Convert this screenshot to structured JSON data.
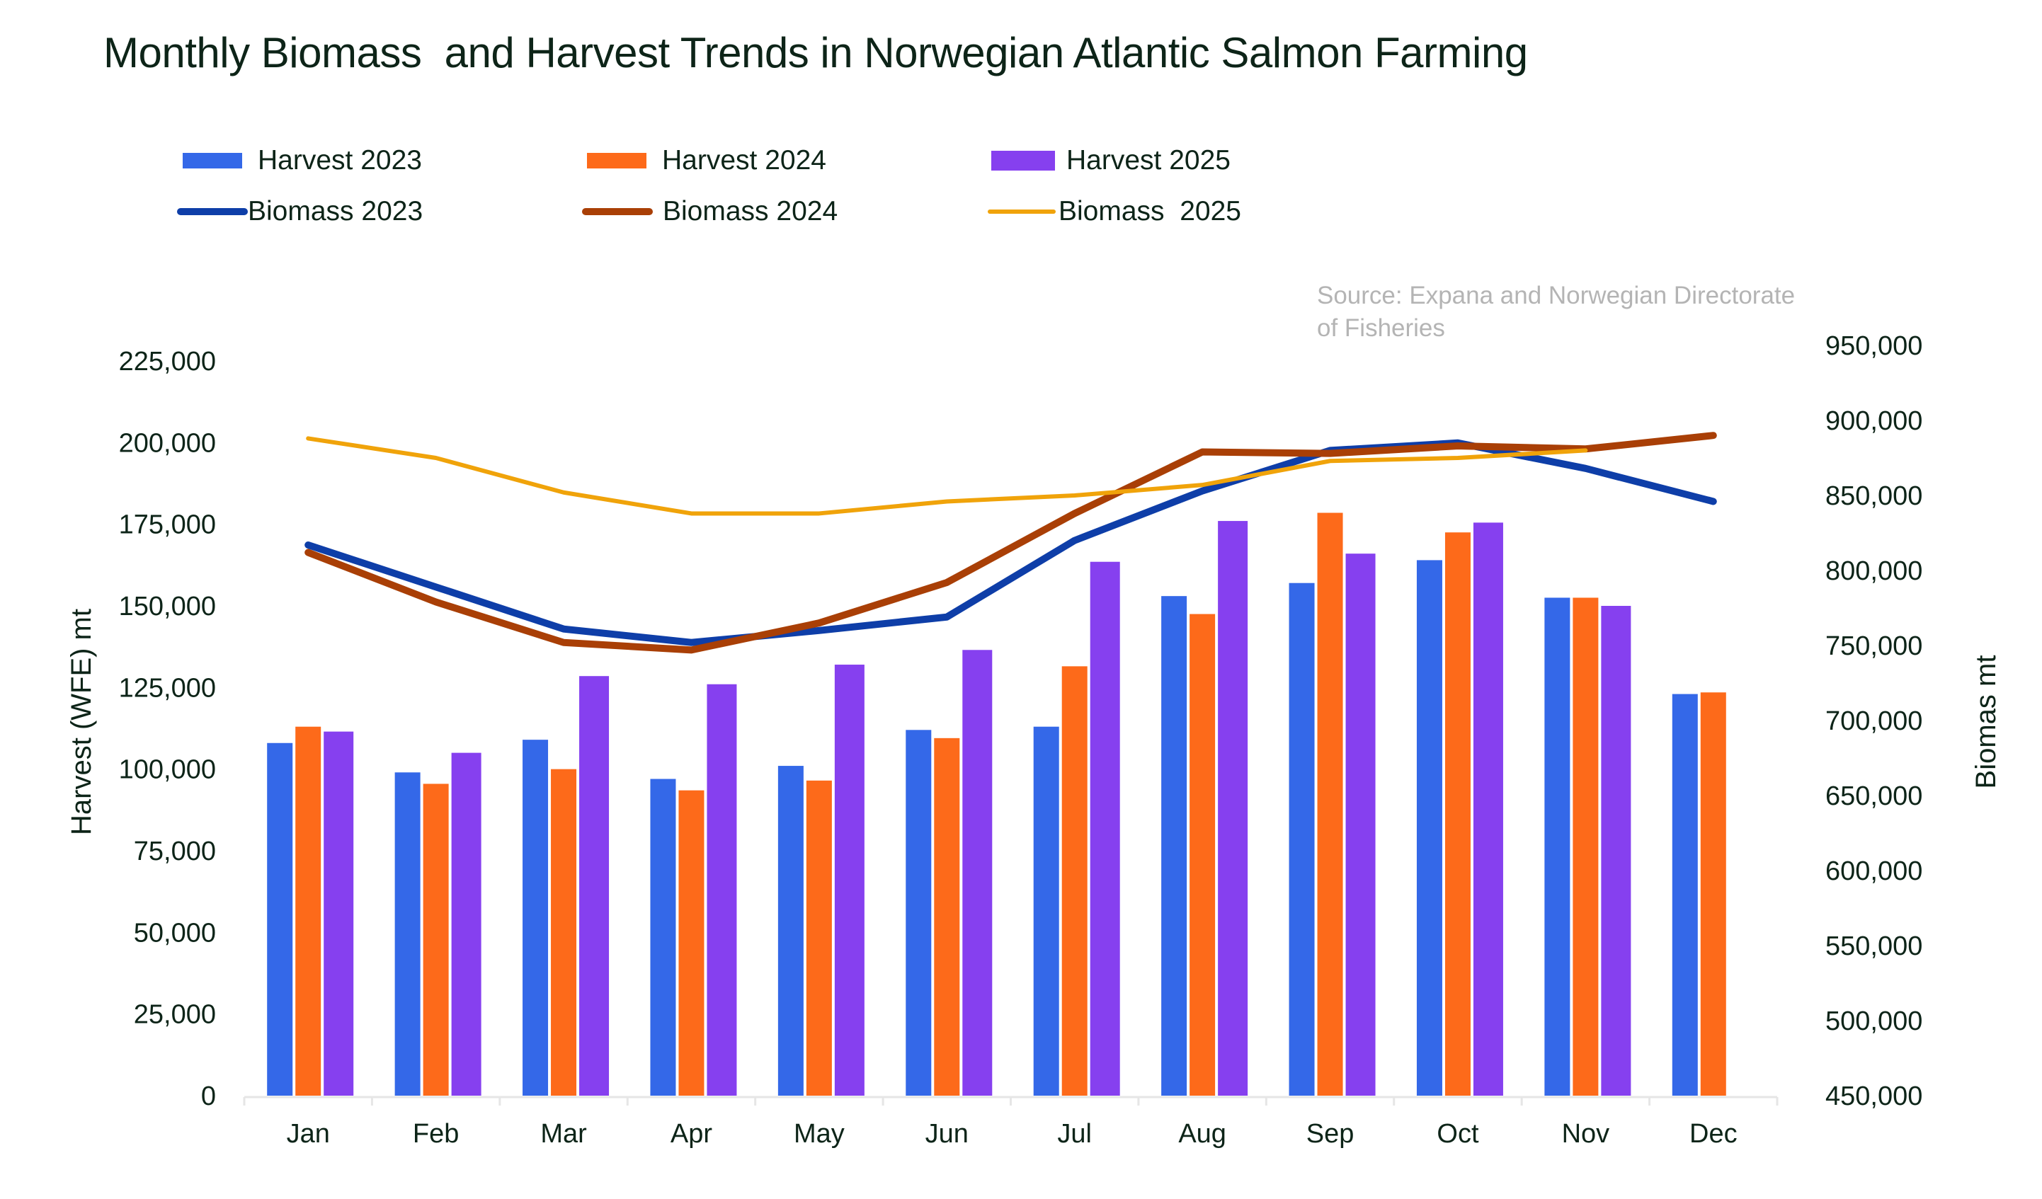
{
  "chart_data": {
    "type": "bar+line",
    "title": "Monthly Biomass  and Harvest Trends in Norwegian Atlantic Salmon Farming",
    "source": "Source: Expana and Norwegian Directorate of Fisheries",
    "source_lines": [
      "Source: Expana and Norwegian Directorate",
      "of Fisheries"
    ],
    "categories": [
      "Jan",
      "Feb",
      "Mar",
      "Apr",
      "May",
      "Jun",
      "Jul",
      "Aug",
      "Sep",
      "Oct",
      "Nov",
      "Dec"
    ],
    "ylabel_left": "Harvest (WFE) mt",
    "ylabel_right": "Biomas mt",
    "ylim_left": [
      0,
      225000
    ],
    "ylim_right": [
      450000,
      950000
    ],
    "yticks_left": [
      "0",
      "25,000",
      "50,000",
      "75,000",
      "100,000",
      "125,000",
      "150,000",
      "175,000",
      "200,000",
      "225,000"
    ],
    "yticks_right": [
      "450,000",
      "500,000",
      "550,000",
      "600,000",
      "650,000",
      "700,000",
      "750,000",
      "800,000",
      "850,000",
      "900,000",
      "950,000"
    ],
    "grid": false,
    "legend_position": "top-left",
    "bar_series": [
      {
        "name": "Harvest 2023",
        "color": "#3468e8",
        "values": [
          108000,
          99000,
          109000,
          97000,
          101000,
          112000,
          113000,
          153000,
          157000,
          164000,
          152500,
          123000
        ]
      },
      {
        "name": "Harvest 2024",
        "color": "#fd6a1a",
        "values": [
          113000,
          95500,
          100000,
          93500,
          96500,
          109500,
          131500,
          147500,
          178500,
          172500,
          152500,
          123500
        ]
      },
      {
        "name": "Harvest 2025",
        "color": "#8640ef",
        "values": [
          111500,
          105000,
          128500,
          126000,
          132000,
          136500,
          163500,
          176000,
          166000,
          175500,
          150000,
          null
        ]
      }
    ],
    "line_series": [
      {
        "name": "Biomass 2023",
        "color": "#0e3ea8",
        "width": "thick",
        "values": [
          817000,
          789000,
          761000,
          752000,
          760000,
          769000,
          820000,
          853000,
          880000,
          885000,
          868000,
          846000
        ]
      },
      {
        "name": "Biomass 2024",
        "color": "#a93f06",
        "width": "thick",
        "values": [
          812000,
          779000,
          752000,
          747000,
          765000,
          792000,
          838000,
          879000,
          878000,
          883000,
          881000,
          890000
        ]
      },
      {
        "name": "Biomass  2025",
        "color": "#f0a30a",
        "width": "thin",
        "values": [
          888000,
          875000,
          852000,
          838000,
          838000,
          846000,
          850000,
          857000,
          873000,
          875000,
          880000,
          null
        ]
      }
    ]
  }
}
